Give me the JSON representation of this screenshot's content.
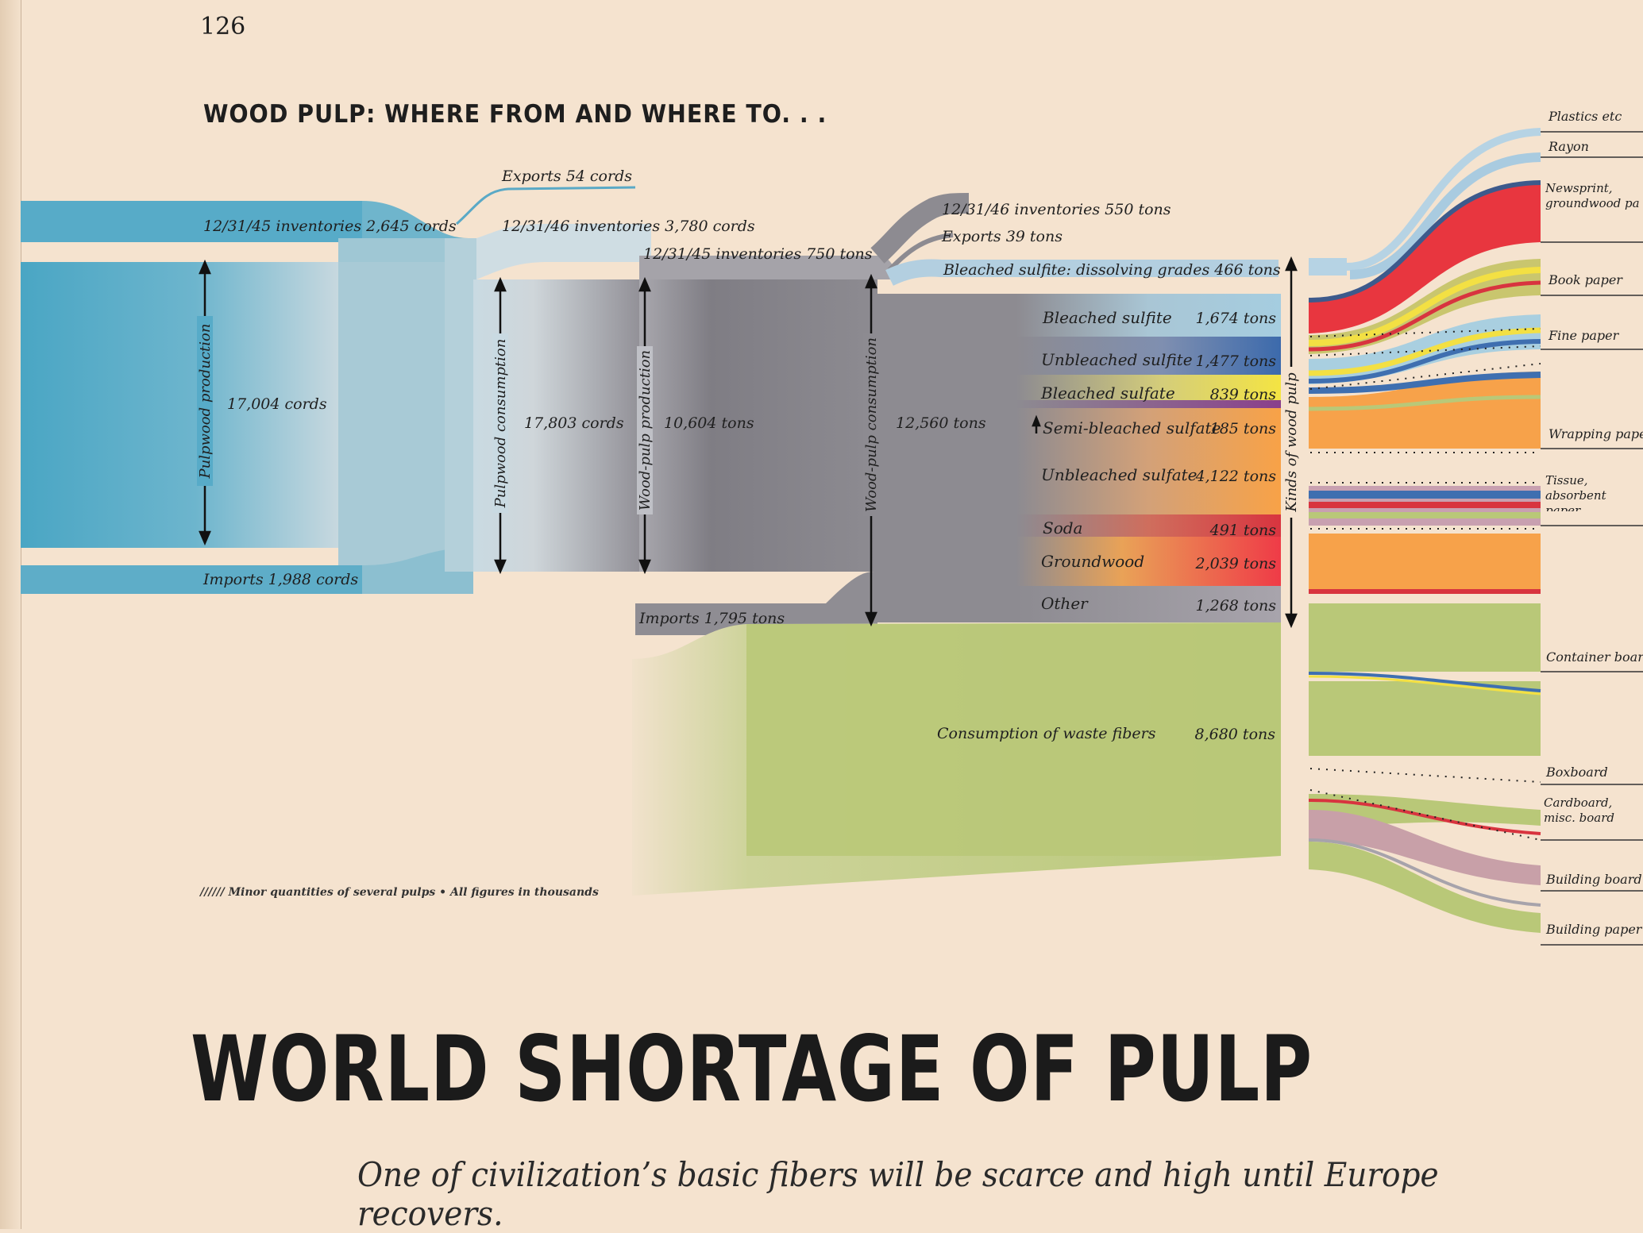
{
  "page_number": "126",
  "chart_heading": "WOOD PULP: WHERE FROM AND WHERE TO. . .",
  "title": "WORLD SHORTAGE OF PULP",
  "subtitle": "One of civilization’s basic fibers will be scarce and high until Europe recovers.",
  "footnote": "Minor quantities of several pulps • All figures in thousands",
  "footnote_marks": "//////",
  "labels": {
    "inv45_cords": "12/31/45 inventories 2,645 cords",
    "exports_cords": "Exports 54 cords",
    "inv46_cords": "12/31/46 inventories 3,780 cords",
    "inv45_tons": "12/31/45 inventories 750 tons",
    "inv46_tons": "12/31/46 inventories 550 tons",
    "exports_tons": "Exports 39 tons",
    "dissolving": "Bleached sulfite: dissolving grades 466 tons",
    "pulpwood_production_value": "17,004 cords",
    "pulpwood_consumption_value": "17,803 cords",
    "wood_pulp_production_value": "10,604 tons",
    "wood_pulp_consumption_value": "12,560 tons",
    "imports_cords": "Imports 1,988 cords",
    "imports_tons": "Imports 1,795 tons",
    "waste_name": "Consumption of waste fibers",
    "waste_value": "8,680 tons"
  },
  "stage_labels": {
    "pulpwood_production": "Pulpwood production",
    "pulpwood_consumption": "Pulpwood consumption",
    "wood_pulp_production": "Wood-pulp production",
    "wood_pulp_consumption": "Wood-pulp consumption",
    "kinds_of_wood_pulp": "Kinds of wood pulp"
  },
  "pulp_kinds": [
    {
      "name": "Bleached sulfite",
      "value": "1,674 tons",
      "color": "#a9cfe0"
    },
    {
      "name": "Unbleached sulfite",
      "value": "1,477 tons",
      "color": "#3f6fb0"
    },
    {
      "name": "Bleached sulfate",
      "value": "839 tons",
      "color": "#f2e24a"
    },
    {
      "name": "Semi-bleached sulfate",
      "value": "185 tons",
      "color": "#8a3f8c"
    },
    {
      "name": "Unbleached sulfate",
      "value": "4,122 tons",
      "color": "#f7a24a"
    },
    {
      "name": "Soda",
      "value": "491 tons",
      "color": "#d8343f"
    },
    {
      "name": "Groundwood",
      "value": "2,039 tons",
      "color": "#ee3a45"
    },
    {
      "name": "Other",
      "value": "1,268 tons",
      "color": "#a7a3ab"
    }
  ],
  "end_uses": [
    {
      "name": "Plastics etc"
    },
    {
      "name": "Rayon"
    },
    {
      "name": "Newsprint, groundwood pa"
    },
    {
      "name": "Book paper"
    },
    {
      "name": "Fine paper"
    },
    {
      "name": "Wrapping pape"
    },
    {
      "name": "Tissue, absorbent paper"
    },
    {
      "name": "Container board"
    },
    {
      "name": "Boxboard"
    },
    {
      "name": "Cardboard, misc. board"
    },
    {
      "name": "Building board"
    },
    {
      "name": "Building paper"
    }
  ],
  "colors": {
    "background": "#f5e3cf",
    "pulpwood_blue": "#4fa8c6",
    "inventory_pale": "#c9dbe3",
    "wood_pulp_gray": "#8b8990",
    "waste_green": "#b9c97a",
    "dissolving_blue": "#b6d3e4"
  }
}
